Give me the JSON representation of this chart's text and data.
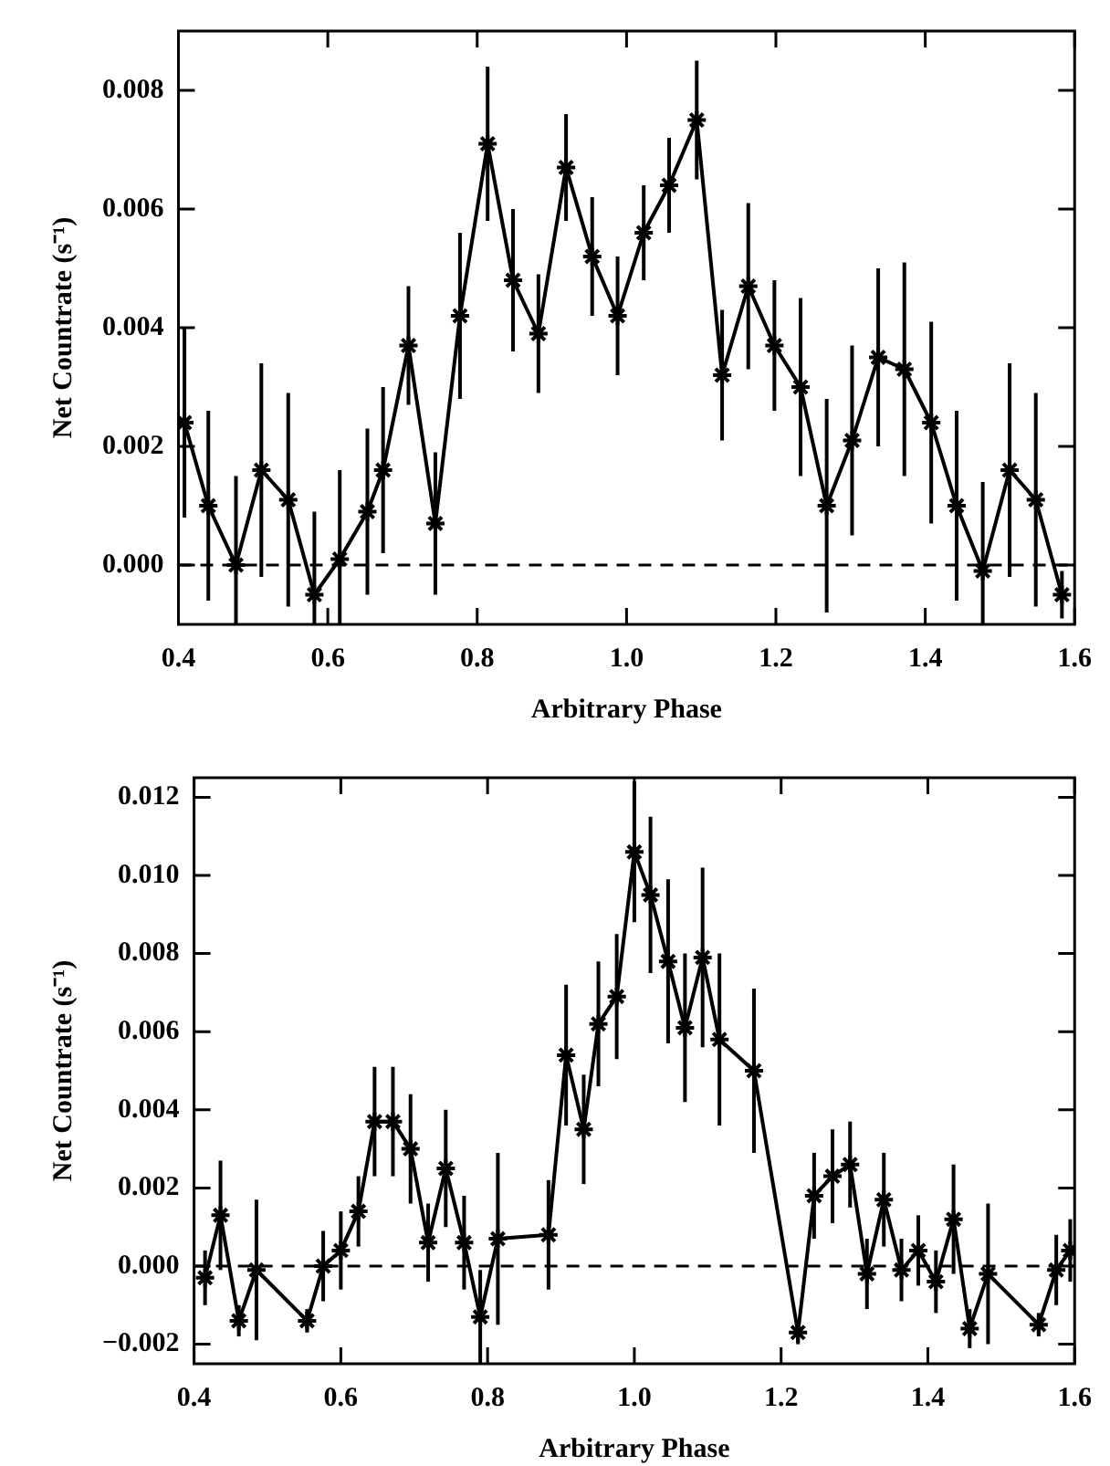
{
  "chart_data": [
    {
      "type": "line",
      "xlabel": "Arbitrary Phase",
      "ylabel": "Net Countrate (s⁻¹)",
      "xlim": [
        0.4,
        1.6
      ],
      "ylim": [
        -0.001,
        0.009
      ],
      "xticks": [
        0.4,
        0.6,
        0.8,
        {
          "value": 1,
          "label": "1.0"
        },
        1.2,
        1.4,
        1.6
      ],
      "yticks": [
        {
          "value": 0,
          "label": "0.000"
        },
        {
          "value": 0.002,
          "label": "0.002"
        },
        {
          "value": 0.004,
          "label": "0.004"
        },
        {
          "value": 0.006,
          "label": "0.006"
        },
        {
          "value": 0.008,
          "label": "0.008"
        }
      ],
      "grid": false,
      "legend": false,
      "marker": "cross",
      "line_style": "solid",
      "ref_lines": [
        {
          "axis": "y",
          "value": 0,
          "line_style": "dashed",
          "color": "#000000"
        }
      ],
      "series": [
        {
          "color": "#000000",
          "x": [
            0.408,
            0.44,
            0.477,
            0.511,
            0.547,
            0.582,
            0.616,
            0.653,
            0.674,
            0.708,
            0.744,
            0.777,
            0.814,
            0.848,
            0.882,
            0.919,
            0.954,
            0.988,
            1.023,
            1.057,
            1.094,
            1.128,
            1.163,
            1.198,
            1.233,
            1.268,
            1.302,
            1.337,
            1.372,
            1.408,
            1.442,
            1.477,
            1.513,
            1.548,
            1.583
          ],
          "values": [
            0.0024,
            0.001,
            0.0,
            0.0016,
            0.0011,
            -0.0005,
            0.0001,
            0.0009,
            0.0016,
            0.0037,
            0.0007,
            0.0042,
            0.0071,
            0.0048,
            0.0039,
            0.0067,
            0.0052,
            0.0042,
            0.0056,
            0.0064,
            0.0075,
            0.0032,
            0.0047,
            0.0037,
            0.003,
            0.001,
            0.0021,
            0.0035,
            0.0033,
            0.0024,
            0.001,
            -0.0001,
            0.0016,
            0.0011,
            -0.0005
          ],
          "errors": [
            0.0016,
            0.0016,
            [
              -0.001,
              0.0015
            ],
            0.0018,
            0.0018,
            [
              -0.001,
              0.0009
            ],
            [
              -0.001,
              0.0016
            ],
            0.0014,
            0.0014,
            0.001,
            0.0012,
            0.0014,
            0.0013,
            0.0012,
            0.001,
            0.0009,
            0.001,
            0.001,
            0.0008,
            0.0008,
            0.001,
            0.0011,
            0.0014,
            0.0011,
            0.0015,
            0.0018,
            0.0016,
            0.0015,
            0.0018,
            0.0017,
            0.0016,
            [
              -0.001,
              0.0014
            ],
            0.0018,
            0.0018,
            0.0004
          ]
        }
      ]
    },
    {
      "type": "line",
      "xlabel": "Arbitrary Phase",
      "ylabel": "Net Countrate (s⁻¹)",
      "xlim": [
        0.4,
        1.6
      ],
      "ylim": [
        -0.0025,
        0.0125
      ],
      "xticks": [
        0.4,
        0.6,
        0.8,
        {
          "value": 1,
          "label": "1.0"
        },
        1.2,
        1.4,
        1.6
      ],
      "yticks": [
        {
          "value": -0.002,
          "label": "−0.002"
        },
        {
          "value": 0,
          "label": "0.000"
        },
        {
          "value": 0.002,
          "label": "0.002"
        },
        {
          "value": 0.004,
          "label": "0.004"
        },
        {
          "value": 0.006,
          "label": "0.006"
        },
        {
          "value": 0.008,
          "label": "0.008"
        },
        {
          "value": 0.01,
          "label": "0.010"
        },
        {
          "value": 0.012,
          "label": "0.012"
        }
      ],
      "grid": false,
      "legend": false,
      "marker": "cross",
      "line_style": "solid",
      "ref_lines": [
        {
          "axis": "y",
          "value": 0,
          "line_style": "dashed",
          "color": "#000000"
        }
      ],
      "series": [
        {
          "color": "#000000",
          "x": [
            0.415,
            0.436,
            0.461,
            0.485,
            0.554,
            0.576,
            0.6,
            0.624,
            0.646,
            0.671,
            0.695,
            0.719,
            0.743,
            0.768,
            0.79,
            0.814,
            0.883,
            0.907,
            0.931,
            0.951,
            0.976,
            1.0,
            1.022,
            1.046,
            1.069,
            1.093,
            1.116,
            1.163,
            1.223,
            1.245,
            1.27,
            1.294,
            1.317,
            1.34,
            1.364,
            1.387,
            1.411,
            1.435,
            1.457,
            1.482,
            1.551,
            1.575,
            1.594
          ],
          "values": [
            -0.0003,
            0.0013,
            -0.0014,
            -0.0001,
            -0.0014,
            0.0,
            0.0004,
            0.0014,
            0.0037,
            0.0037,
            0.003,
            0.0006,
            0.0025,
            0.0006,
            -0.0013,
            0.0007,
            0.0008,
            0.0054,
            0.0035,
            0.0062,
            0.0069,
            0.0106,
            0.0095,
            0.0078,
            0.0061,
            0.0079,
            0.0058,
            0.005,
            -0.0017,
            0.0018,
            0.0023,
            0.0026,
            -0.0002,
            0.0017,
            -0.0001,
            0.0004,
            -0.0004,
            0.0012,
            -0.0016,
            -0.0002,
            -0.0015,
            -0.0001,
            0.0004
          ],
          "errors": [
            0.0007,
            0.0014,
            0.0004,
            0.0018,
            0.0003,
            0.0009,
            0.001,
            0.0009,
            0.0014,
            0.0014,
            0.0014,
            0.001,
            0.0015,
            0.0012,
            0.0012,
            0.0022,
            0.0014,
            0.0018,
            0.0014,
            0.0016,
            0.0016,
            0.0018,
            0.002,
            0.0021,
            0.0019,
            0.0023,
            0.0022,
            0.0021,
            0.0003,
            0.0011,
            0.0012,
            0.0011,
            0.0009,
            0.0012,
            0.0008,
            0.0009,
            0.0008,
            0.0014,
            0.0005,
            0.0018,
            0.0003,
            0.0009,
            0.0008
          ]
        }
      ]
    }
  ]
}
